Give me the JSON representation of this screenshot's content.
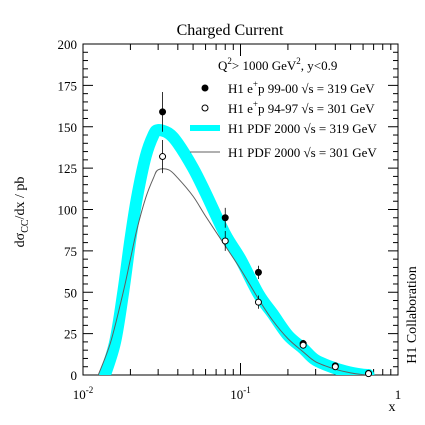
{
  "chart_data": {
    "type": "scatter",
    "title": "Charged Current",
    "condition": {
      "q": "Q",
      "q_sup": "2",
      "mid": "> 1000 GeV",
      "mid_sup": "2",
      "end": ", y<0.9"
    },
    "xlabel": "x",
    "ylabel": {
      "main": "dσ",
      "sub": "CC",
      "rest": "/dx  / pb"
    },
    "side_label": "H1 Collaboration",
    "xscale": "log",
    "xlim": [
      0.01,
      1
    ],
    "ylim": [
      0,
      200
    ],
    "yticks": [
      "0",
      "25",
      "50",
      "75",
      "100",
      "125",
      "150",
      "175",
      "200"
    ],
    "xticks": [
      {
        "base": "10",
        "exp": "-2"
      },
      {
        "base": "10",
        "exp": "-1"
      },
      {
        "base": "1",
        "exp": ""
      }
    ],
    "legend": [
      {
        "marker": "filled-circle",
        "pre": "H1 e",
        "sup": "+",
        "post": "p 99-00  √s = 319 GeV"
      },
      {
        "marker": "open-circle",
        "pre": "H1 e",
        "sup": "+",
        "post": "p 94-97  √s = 301 GeV"
      },
      {
        "marker": "band",
        "pre": "H1 PDF 2000 √s = 319 GeV",
        "sup": "",
        "post": ""
      },
      {
        "marker": "line",
        "pre": "H1 PDF 2000 √s = 301 GeV",
        "sup": "",
        "post": ""
      }
    ],
    "series": [
      {
        "name": "H1 e+p 99-00 √s = 319 GeV",
        "marker": "filled-circle",
        "x": [
          0.032,
          0.08,
          0.13,
          0.25,
          0.4,
          0.65
        ],
        "y": [
          159,
          95,
          62,
          19,
          5.5,
          1.0
        ],
        "yerr": [
          12,
          6,
          4,
          2.2,
          1.2,
          0.5
        ]
      },
      {
        "name": "H1 e+p 94-97 √s = 301 GeV",
        "marker": "open-circle",
        "x": [
          0.032,
          0.08,
          0.13,
          0.25,
          0.4,
          0.65
        ],
        "y": [
          132,
          81,
          44,
          18,
          5,
          0.8
        ],
        "yerr": [
          10,
          6,
          4,
          2,
          1.2,
          0.5
        ]
      },
      {
        "name": "H1 PDF 2000 √s = 319 GeV",
        "style": "band",
        "x": [
          0.0138,
          0.016,
          0.018,
          0.02,
          0.022,
          0.025,
          0.028,
          0.03,
          0.035,
          0.04,
          0.05,
          0.06,
          0.08,
          0.1,
          0.13,
          0.16,
          0.2,
          0.25,
          0.3,
          0.4,
          0.5,
          0.6,
          0.65
        ],
        "y": [
          0,
          20,
          50,
          82,
          107,
          132,
          145,
          148,
          146,
          140,
          125,
          110,
          85,
          70,
          49,
          37,
          24,
          16,
          9,
          4,
          1.5,
          0.2,
          0
        ],
        "band_halfwidth": 3
      },
      {
        "name": "H1 PDF 2000 √s = 301 GeV",
        "style": "line",
        "x": [
          0.0125,
          0.015,
          0.018,
          0.02,
          0.022,
          0.025,
          0.028,
          0.03,
          0.035,
          0.04,
          0.05,
          0.06,
          0.08,
          0.1,
          0.13,
          0.16,
          0.2,
          0.25,
          0.3,
          0.4,
          0.5,
          0.6,
          0.65
        ],
        "y": [
          0,
          20,
          50,
          70,
          88,
          107,
          119,
          124,
          124,
          119,
          108,
          96,
          78,
          64,
          46,
          33,
          22,
          14,
          8,
          3.5,
          1.3,
          0.2,
          0
        ]
      }
    ],
    "colors": {
      "band": "#00ffff",
      "line": "#606060",
      "axis": "#000000",
      "points": "#000000"
    }
  }
}
